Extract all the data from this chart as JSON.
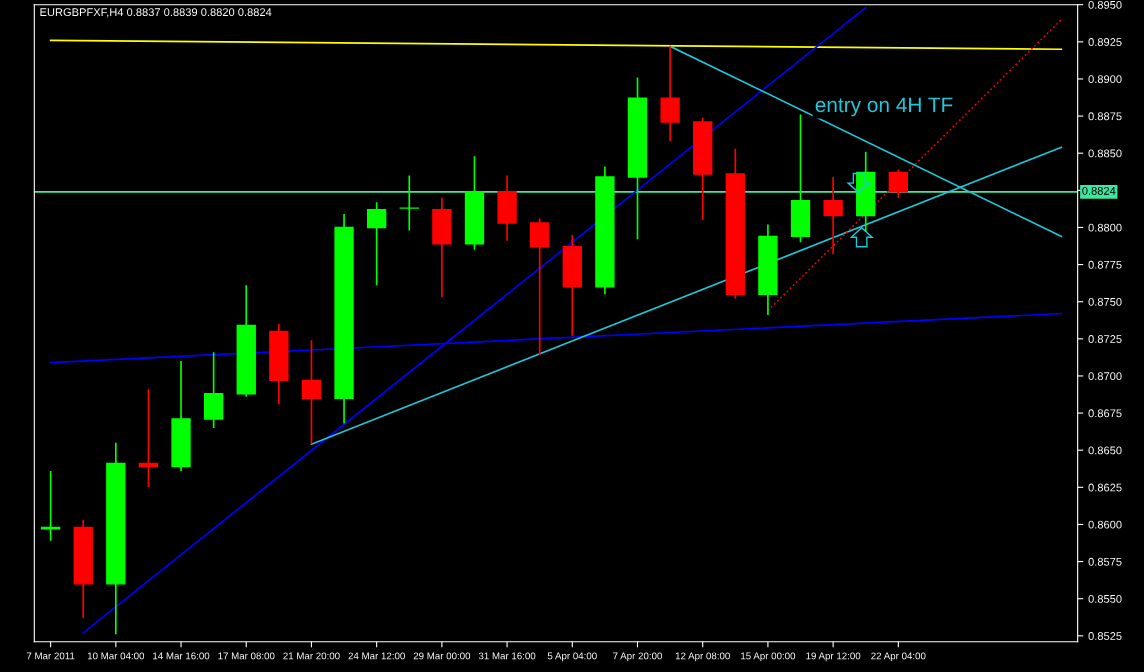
{
  "chart_data": {
    "type": "candlestick",
    "title": "EURGBPFXF,H4 0.8837 0.8839 0.8820 0.8824",
    "categories": [
      "7 Mar 2011",
      null,
      "10 Mar 04:00",
      null,
      "14 Mar 16:00",
      null,
      "17 Mar 08:00",
      null,
      "21 Mar 20:00",
      null,
      "24 Mar 12:00",
      null,
      "29 Mar 00:00",
      null,
      "31 Mar 16:00",
      null,
      "5 Apr 04:00",
      null,
      "7 Apr 20:00",
      null,
      "12 Apr 08:00",
      null,
      "15 Apr 00:00",
      null,
      "19 Apr 12:00",
      null,
      "22 Apr 04:00",
      null,
      null,
      null,
      null,
      null
    ],
    "ohlc": [
      [
        0.8597,
        0.8636,
        0.8589,
        0.8598
      ],
      [
        0.8598,
        0.8603,
        0.8537,
        0.856
      ],
      [
        0.856,
        0.8655,
        0.8526,
        0.8641
      ],
      [
        0.8641,
        0.8691,
        0.8625,
        0.8639
      ],
      [
        0.8639,
        0.871,
        0.8636,
        0.8671
      ],
      [
        0.8671,
        0.8716,
        0.8665,
        0.8688
      ],
      [
        0.8688,
        0.8761,
        0.8686,
        0.8734
      ],
      [
        0.873,
        0.8735,
        0.8681,
        0.8697
      ],
      [
        0.8697,
        0.8724,
        0.8654,
        0.8685
      ],
      [
        0.8685,
        0.8809,
        0.8668,
        0.88
      ],
      [
        0.88,
        0.8817,
        0.8761,
        0.8812
      ],
      [
        0.8813,
        0.8835,
        0.8798,
        0.8813
      ],
      [
        0.8812,
        0.882,
        0.8753,
        0.8789
      ],
      [
        0.8789,
        0.8848,
        0.8785,
        0.8824
      ],
      [
        0.8824,
        0.8835,
        0.8791,
        0.8803
      ],
      [
        0.8803,
        0.8806,
        0.8714,
        0.8787
      ],
      [
        0.8787,
        0.8795,
        0.8727,
        0.876
      ],
      [
        0.876,
        0.8841,
        0.8755,
        0.8834
      ],
      [
        0.8834,
        0.8901,
        0.8792,
        0.8887
      ],
      [
        0.8887,
        0.8922,
        0.8858,
        0.8871
      ],
      [
        0.8871,
        0.8874,
        0.8805,
        0.8836
      ],
      [
        0.8836,
        0.8853,
        0.8752,
        0.8755
      ],
      [
        0.8755,
        0.8802,
        0.8741,
        0.8794
      ],
      [
        0.8794,
        0.8876,
        0.879,
        0.8818
      ],
      [
        0.8818,
        0.8834,
        0.8782,
        0.8808
      ],
      [
        0.8808,
        0.8851,
        0.8797,
        0.8837
      ],
      [
        0.8837,
        0.8839,
        0.882,
        0.8824
      ],
      null,
      null,
      null,
      null,
      null
    ],
    "series": [
      {
        "type": "line",
        "color": "#ffff00",
        "values": [
          0.8926,
          null,
          null,
          null,
          null,
          null,
          null,
          null,
          null,
          null,
          null,
          null,
          null,
          null,
          null,
          null,
          null,
          null,
          null,
          null,
          null,
          null,
          null,
          null,
          null,
          null,
          null,
          null,
          null,
          null,
          null,
          0.892
        ]
      },
      {
        "type": "line",
        "color": "#0000ff",
        "values": [
          0.8709,
          null,
          null,
          null,
          null,
          null,
          null,
          null,
          null,
          null,
          null,
          null,
          null,
          null,
          null,
          null,
          null,
          null,
          null,
          null,
          null,
          null,
          null,
          null,
          null,
          null,
          null,
          null,
          null,
          null,
          null,
          0.8742
        ]
      },
      {
        "type": "line",
        "color": "#0000ff",
        "values": [
          null,
          0.8527,
          null,
          null,
          null,
          null,
          null,
          null,
          null,
          null,
          null,
          null,
          null,
          null,
          null,
          null,
          null,
          null,
          null,
          null,
          null,
          null,
          null,
          null,
          null,
          0.8948,
          null,
          null,
          null,
          null,
          null,
          null
        ]
      },
      {
        "type": "line",
        "color": "#20c8d8",
        "values": [
          null,
          null,
          null,
          null,
          null,
          null,
          null,
          null,
          0.8654,
          null,
          null,
          null,
          null,
          null,
          null,
          null,
          null,
          null,
          null,
          null,
          null,
          null,
          null,
          null,
          null,
          null,
          null,
          null,
          null,
          null,
          null,
          0.8854
        ]
      },
      {
        "type": "line",
        "color": "#20c8d8",
        "values": [
          null,
          null,
          null,
          null,
          null,
          null,
          null,
          null,
          null,
          null,
          null,
          null,
          null,
          null,
          null,
          null,
          null,
          null,
          null,
          0.8922,
          null,
          null,
          null,
          null,
          null,
          null,
          null,
          null,
          null,
          null,
          null,
          0.8794
        ]
      },
      {
        "type": "line",
        "color": "#ff0000",
        "line_style": "dotted",
        "values": [
          null,
          null,
          null,
          null,
          null,
          null,
          null,
          null,
          null,
          null,
          null,
          null,
          null,
          null,
          null,
          null,
          null,
          null,
          null,
          null,
          null,
          null,
          0.8744,
          null,
          null,
          null,
          null,
          null,
          null,
          null,
          null,
          0.894
        ]
      }
    ],
    "ref_lines": [
      {
        "axis": "y",
        "value": 0.8824,
        "label": "0.8824",
        "color": "#3de8a0"
      }
    ],
    "annotations": [
      "entry on 4H TF"
    ],
    "ylim": [
      0.8521,
      0.895
    ],
    "yticks": [
      {
        "value": 0.8525,
        "label": "0.8525"
      },
      {
        "value": 0.855,
        "label": "0.8550"
      },
      {
        "value": 0.8575,
        "label": "0.8575"
      },
      {
        "value": 0.86,
        "label": "0.8600"
      },
      {
        "value": 0.8625,
        "label": "0.8625"
      },
      {
        "value": 0.865,
        "label": "0.8650"
      },
      {
        "value": 0.8675,
        "label": "0.8675"
      },
      {
        "value": 0.87,
        "label": "0.8700"
      },
      {
        "value": 0.8725,
        "label": "0.8725"
      },
      {
        "value": 0.875,
        "label": "0.8750"
      },
      {
        "value": 0.8775,
        "label": "0.8775"
      },
      {
        "value": 0.88,
        "label": "0.8800"
      },
      {
        "value": 0.8825,
        "label": null
      },
      {
        "value": 0.885,
        "label": "0.8850"
      },
      {
        "value": 0.8875,
        "label": "0.8875"
      },
      {
        "value": 0.89,
        "label": "0.8900"
      },
      {
        "value": 0.8925,
        "label": "0.8925"
      },
      {
        "value": 0.895,
        "label": "0.8950"
      }
    ],
    "grid": false
  }
}
